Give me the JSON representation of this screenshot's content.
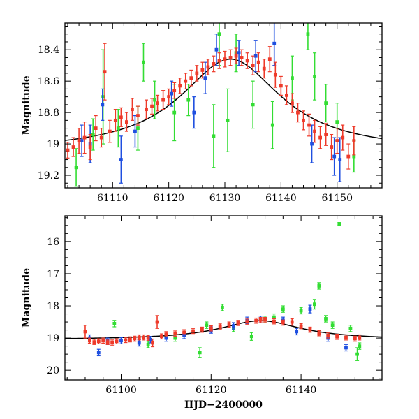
{
  "colors": {
    "red": "#ee3a2a",
    "green": "#33dd33",
    "blue": "#1f4fe0",
    "model": "#000000",
    "frame": "#000000"
  },
  "chart_data": [
    {
      "type": "scatter",
      "title": "",
      "xlabel": "",
      "ylabel": "Magnitude",
      "xlim": [
        61101.5,
        61158
      ],
      "ylim": [
        19.28,
        18.23
      ],
      "y_inverted": true,
      "xticks": [
        61110,
        61120,
        61130,
        61140,
        61150
      ],
      "xtick_labels": [
        "61110",
        "61120",
        "61130",
        "61140",
        "61150"
      ],
      "yticks": [
        18.4,
        18.6,
        18.8,
        19.0,
        19.2
      ],
      "ytick_labels": [
        "18.4",
        "18.6",
        "18.8",
        "19",
        "19.2"
      ],
      "series": [
        {
          "name": "red points",
          "color": "red",
          "points": [
            [
              61102,
              19.04,
              0.05
            ],
            [
              61103,
              19.02,
              0.06
            ],
            [
              61104,
              18.98,
              0.08
            ],
            [
              61105,
              18.96,
              0.1
            ],
            [
              61106,
              19.02,
              0.08
            ],
            [
              61107,
              18.9,
              0.08
            ],
            [
              61108,
              18.96,
              0.06
            ],
            [
              61108.6,
              18.54,
              0.18
            ],
            [
              61109.5,
              18.92,
              0.07
            ],
            [
              61110.5,
              18.85,
              0.07
            ],
            [
              61111.5,
              18.83,
              0.06
            ],
            [
              61112.5,
              18.86,
              0.06
            ],
            [
              61113.5,
              18.78,
              0.07
            ],
            [
              61114.5,
              18.82,
              0.06
            ],
            [
              61116,
              18.78,
              0.06
            ],
            [
              61117,
              18.76,
              0.05
            ],
            [
              61118,
              18.74,
              0.05
            ],
            [
              61119,
              18.72,
              0.06
            ],
            [
              61120,
              18.7,
              0.05
            ],
            [
              61121,
              18.66,
              0.05
            ],
            [
              61122,
              18.63,
              0.05
            ],
            [
              61123,
              18.6,
              0.05
            ],
            [
              61124,
              18.58,
              0.05
            ],
            [
              61125,
              18.55,
              0.05
            ],
            [
              61126,
              18.53,
              0.05
            ],
            [
              61127,
              18.51,
              0.05
            ],
            [
              61128,
              18.49,
              0.05
            ],
            [
              61129,
              18.47,
              0.05
            ],
            [
              61130,
              18.46,
              0.05
            ],
            [
              61131,
              18.45,
              0.05
            ],
            [
              61132,
              18.44,
              0.05
            ],
            [
              61133,
              18.45,
              0.05
            ],
            [
              61134,
              18.47,
              0.05
            ],
            [
              61135,
              18.5,
              0.06
            ],
            [
              61136,
              18.48,
              0.06
            ],
            [
              61137,
              18.52,
              0.06
            ],
            [
              61138,
              18.46,
              0.08
            ],
            [
              61139,
              18.56,
              0.08
            ],
            [
              61140,
              18.63,
              0.06
            ],
            [
              61141,
              18.69,
              0.06
            ],
            [
              61142,
              18.74,
              0.06
            ],
            [
              61143,
              18.8,
              0.06
            ],
            [
              61144,
              18.85,
              0.06
            ],
            [
              61145,
              18.88,
              0.07
            ],
            [
              61146,
              18.92,
              0.07
            ],
            [
              61147,
              18.96,
              0.07
            ],
            [
              61148,
              18.94,
              0.07
            ],
            [
              61149,
              19.02,
              0.08
            ],
            [
              61150,
              18.98,
              0.08
            ],
            [
              61151,
              18.96,
              0.08
            ],
            [
              61152,
              19.08,
              0.08
            ],
            [
              61153,
              18.98,
              0.09
            ]
          ]
        },
        {
          "name": "green points",
          "color": "green",
          "points": [
            [
              61103.5,
              19.15,
              0.12
            ],
            [
              61106.5,
              18.94,
              0.1
            ],
            [
              61108.3,
              18.7,
              0.3
            ],
            [
              61111,
              18.9,
              0.12
            ],
            [
              61114.5,
              18.9,
              0.14
            ],
            [
              61115.5,
              18.48,
              0.12
            ],
            [
              61117.5,
              18.72,
              0.12
            ],
            [
              61121,
              18.8,
              0.18
            ],
            [
              61123.5,
              18.72,
              0.1
            ],
            [
              61128,
              18.95,
              0.2
            ],
            [
              61129,
              18.3,
              0.2
            ],
            [
              61130.5,
              18.85,
              0.2
            ],
            [
              61132,
              18.42,
              0.12
            ],
            [
              61135,
              18.75,
              0.15
            ],
            [
              61138.5,
              18.88,
              0.15
            ],
            [
              61142,
              18.58,
              0.14
            ],
            [
              61144.8,
              18.3,
              0.1
            ],
            [
              61146,
              18.57,
              0.15
            ],
            [
              61148,
              18.74,
              0.12
            ],
            [
              61150,
              18.86,
              0.12
            ],
            [
              61153,
              19.08,
              0.1
            ]
          ]
        },
        {
          "name": "blue points",
          "color": "blue",
          "points": [
            [
              61104.5,
              18.98,
              0.1
            ],
            [
              61106,
              19.0,
              0.12
            ],
            [
              61108.2,
              18.75,
              0.1
            ],
            [
              61111.5,
              19.1,
              0.15
            ],
            [
              61114,
              18.92,
              0.1
            ],
            [
              61120.5,
              18.68,
              0.08
            ],
            [
              61124.5,
              18.8,
              0.1
            ],
            [
              61126.5,
              18.58,
              0.1
            ],
            [
              61128.5,
              18.4,
              0.1
            ],
            [
              61132.5,
              18.42,
              0.08
            ],
            [
              61135.5,
              18.44,
              0.1
            ],
            [
              61138.8,
              18.36,
              0.14
            ],
            [
              61145.5,
              19.0,
              0.12
            ],
            [
              61149.5,
              19.08,
              0.12
            ],
            [
              61150.5,
              19.1,
              0.14
            ]
          ]
        }
      ],
      "model_curve": {
        "peak_x": 61131,
        "peak_y": 18.46,
        "base_y": 19.05,
        "width": 11
      }
    },
    {
      "type": "scatter",
      "title": "",
      "xlabel": "HJD−2400000",
      "ylabel": "Magnitude",
      "xlim": [
        61087.5,
        61158
      ],
      "ylim": [
        20.3,
        15.2
      ],
      "y_inverted": true,
      "xticks": [
        61100,
        61120,
        61140
      ],
      "xtick_labels": [
        "61100",
        "61120",
        "61140"
      ],
      "yticks": [
        16,
        17,
        18,
        19,
        20
      ],
      "ytick_labels": [
        "16",
        "17",
        "18",
        "19",
        "20"
      ],
      "series": [
        {
          "name": "red points",
          "color": "red",
          "points": [
            [
              61092,
              18.8,
              0.2
            ],
            [
              61093,
              19.08,
              0.08
            ],
            [
              61094,
              19.12,
              0.08
            ],
            [
              61095,
              19.1,
              0.08
            ],
            [
              61096,
              19.08,
              0.08
            ],
            [
              61097,
              19.12,
              0.08
            ],
            [
              61098,
              19.14,
              0.08
            ],
            [
              61099,
              19.1,
              0.08
            ],
            [
              61101,
              19.06,
              0.08
            ],
            [
              61102,
              19.04,
              0.08
            ],
            [
              61103,
              19.02,
              0.08
            ],
            [
              61104,
              18.98,
              0.08
            ],
            [
              61105,
              18.98,
              0.08
            ],
            [
              61106,
              19.0,
              0.08
            ],
            [
              61107,
              19.15,
              0.12
            ],
            [
              61108,
              18.5,
              0.2
            ],
            [
              61109,
              18.95,
              0.08
            ],
            [
              61110,
              18.88,
              0.08
            ],
            [
              61112,
              18.86,
              0.08
            ],
            [
              61114,
              18.82,
              0.08
            ],
            [
              61116,
              18.78,
              0.08
            ],
            [
              61118,
              18.74,
              0.08
            ],
            [
              61120,
              18.7,
              0.08
            ],
            [
              61122,
              18.64,
              0.08
            ],
            [
              61124,
              18.58,
              0.08
            ],
            [
              61126,
              18.53,
              0.08
            ],
            [
              61128,
              18.49,
              0.08
            ],
            [
              61130,
              18.46,
              0.08
            ],
            [
              61131,
              18.44,
              0.08
            ],
            [
              61132,
              18.44,
              0.08
            ],
            [
              61134,
              18.48,
              0.08
            ],
            [
              61136,
              18.52,
              0.08
            ],
            [
              61138,
              18.5,
              0.1
            ],
            [
              61140,
              18.63,
              0.08
            ],
            [
              61142,
              18.74,
              0.08
            ],
            [
              61144,
              18.85,
              0.08
            ],
            [
              61146,
              18.92,
              0.08
            ],
            [
              61148,
              18.96,
              0.08
            ],
            [
              61150,
              18.98,
              0.08
            ],
            [
              61152,
              19.02,
              0.08
            ],
            [
              61153,
              18.98,
              0.08
            ]
          ]
        },
        {
          "name": "green points",
          "color": "green",
          "points": [
            [
              61098.5,
              18.55,
              0.1
            ],
            [
              61106,
              19.2,
              0.1
            ],
            [
              61112,
              19.0,
              0.1
            ],
            [
              61117.5,
              19.45,
              0.15
            ],
            [
              61119,
              18.6,
              0.1
            ],
            [
              61122.5,
              18.05,
              0.1
            ],
            [
              61125,
              18.7,
              0.1
            ],
            [
              61129,
              18.95,
              0.12
            ],
            [
              61132,
              18.42,
              0.1
            ],
            [
              61134,
              18.35,
              0.1
            ],
            [
              61136,
              18.1,
              0.1
            ],
            [
              61140,
              18.15,
              0.1
            ],
            [
              61143,
              17.95,
              0.15
            ],
            [
              61144,
              17.38,
              0.1
            ],
            [
              61145.5,
              18.4,
              0.1
            ],
            [
              61147,
              18.6,
              0.1
            ],
            [
              61148.5,
              15.45,
              0.04
            ],
            [
              61151,
              18.7,
              0.1
            ],
            [
              61152.5,
              19.5,
              0.2
            ],
            [
              61153,
              19.25,
              0.1
            ]
          ]
        },
        {
          "name": "blue points",
          "color": "blue",
          "points": [
            [
              61093,
              19.0,
              0.1
            ],
            [
              61095,
              19.45,
              0.1
            ],
            [
              61097,
              19.1,
              0.1
            ],
            [
              61100,
              19.08,
              0.1
            ],
            [
              61104,
              19.15,
              0.1
            ],
            [
              61106.5,
              19.05,
              0.1
            ],
            [
              61110,
              19.0,
              0.1
            ],
            [
              61114,
              18.92,
              0.1
            ],
            [
              61120,
              18.75,
              0.1
            ],
            [
              61125,
              18.62,
              0.1
            ],
            [
              61128,
              18.45,
              0.1
            ],
            [
              61131,
              18.42,
              0.1
            ],
            [
              61136,
              18.45,
              0.1
            ],
            [
              61139,
              18.8,
              0.1
            ],
            [
              61142,
              18.1,
              0.12
            ],
            [
              61146,
              19.0,
              0.1
            ],
            [
              61150,
              19.3,
              0.1
            ]
          ]
        }
      ],
      "model_curve": {
        "peak_x": 61131,
        "peak_y": 18.46,
        "base_y": 19.05,
        "width": 11
      }
    }
  ]
}
